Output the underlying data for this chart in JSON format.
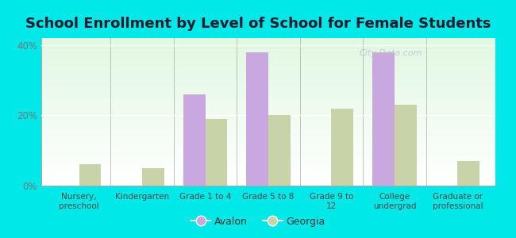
{
  "title": "School Enrollment by Level of School for Female Students",
  "categories": [
    "Nursery,\npreschool",
    "Kindergarten",
    "Grade 1 to 4",
    "Grade 5 to 8",
    "Grade 9 to\n12",
    "College\nundergrad",
    "Graduate or\nprofessional"
  ],
  "avalon": [
    0,
    0,
    26,
    38,
    0,
    38,
    0
  ],
  "georgia": [
    6,
    5,
    19,
    20,
    22,
    23,
    7
  ],
  "avalon_color": "#c9a8e0",
  "georgia_color": "#c8d4a8",
  "background_color": "#00e8e8",
  "ylim": [
    0,
    42
  ],
  "yticks": [
    0,
    20,
    40
  ],
  "ytick_labels": [
    "0%",
    "20%",
    "40%"
  ],
  "bar_width": 0.35,
  "legend_labels": [
    "Avalon",
    "Georgia"
  ],
  "watermark": "City-Data.com",
  "title_fontsize": 13,
  "title_color": "#1a1a2e"
}
